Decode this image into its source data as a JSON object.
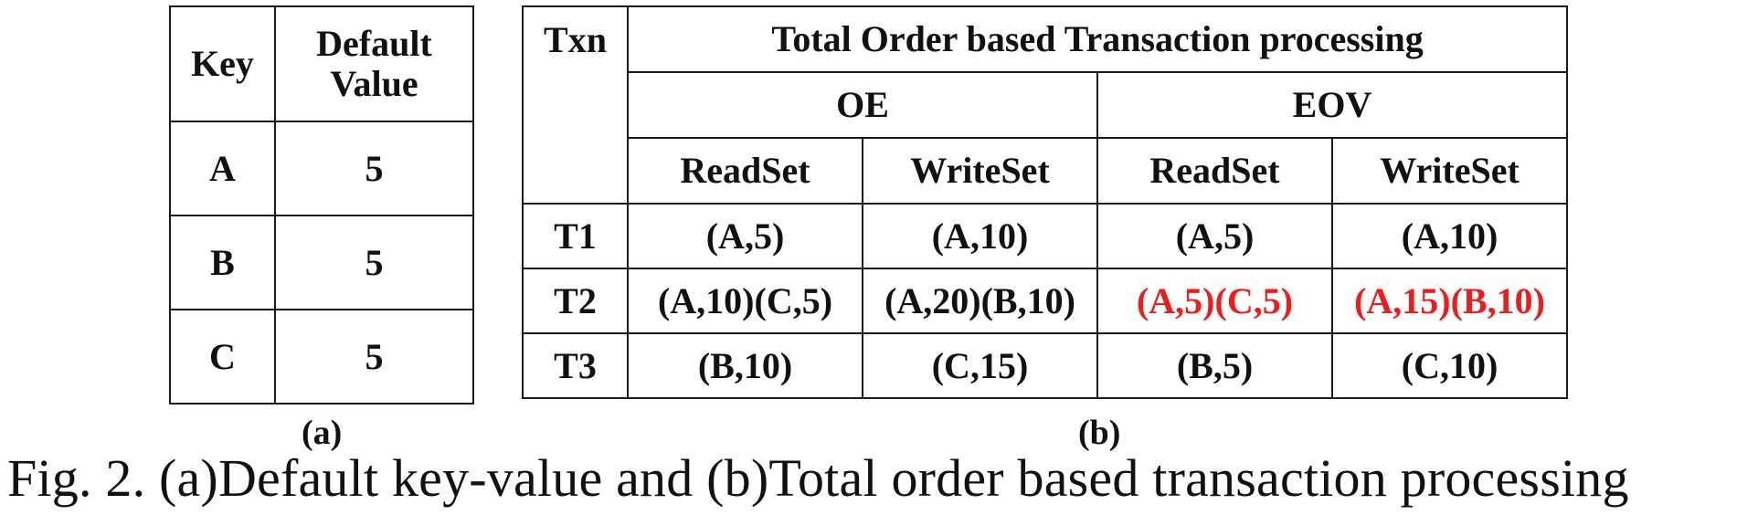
{
  "table_a": {
    "headers": [
      "Key",
      "Default Value"
    ],
    "rows": [
      [
        "A",
        "5"
      ],
      [
        "B",
        "5"
      ],
      [
        "C",
        "5"
      ]
    ]
  },
  "table_b": {
    "txn_header": "Txn",
    "title": "Total Order based Transaction processing",
    "groups": [
      "OE",
      "EOV"
    ],
    "subheaders": [
      "ReadSet",
      "WriteSet",
      "ReadSet",
      "WriteSet"
    ],
    "rows": [
      {
        "txn": "T1",
        "cells": [
          "(A,5)",
          "(A,10)",
          "(A,5)",
          "(A,10)"
        ]
      },
      {
        "txn": "T2",
        "cells": [
          "(A,10)(C,5)",
          "(A,20)(B,10)",
          "(A,5)(C,5)",
          "(A,15)(B,10)"
        ]
      },
      {
        "txn": "T3",
        "cells": [
          "(B,10)",
          "(C,15)",
          "(B,5)",
          "(C,10)"
        ]
      }
    ],
    "highlight_color": "#ee1c1c"
  },
  "labels": {
    "a": "(a)",
    "b": "(b)"
  },
  "caption": "Fig. 2.  (a)Default key-value and (b)Total order based transaction processing"
}
